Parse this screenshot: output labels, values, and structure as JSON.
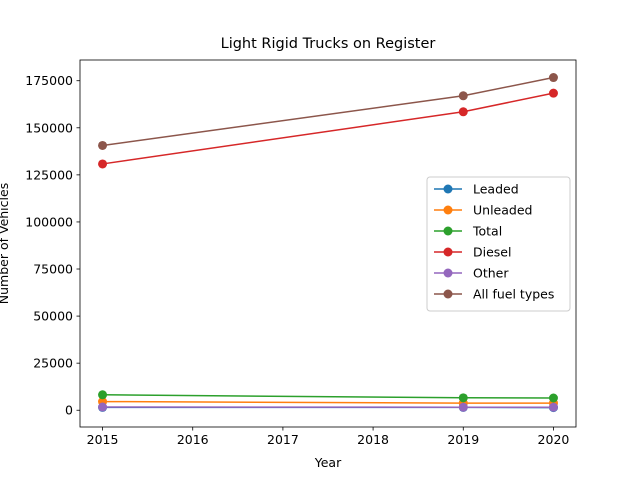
{
  "chart_data": {
    "type": "line",
    "title": "Light Rigid Trucks on Register",
    "xlabel": "Year",
    "ylabel": "Number of Vehicles",
    "x": [
      2015,
      2019,
      2020
    ],
    "xticks": [
      2015,
      2016,
      2017,
      2018,
      2019,
      2020
    ],
    "yticks": [
      0,
      25000,
      50000,
      75000,
      100000,
      125000,
      150000,
      175000
    ],
    "xlim": [
      2014.75,
      2020.25
    ],
    "ylim": [
      -8900,
      186000
    ],
    "grid": false,
    "legend_position": "center-right",
    "series": [
      {
        "name": "Leaded",
        "color": "#1f77b4",
        "values": [
          1500,
          1500,
          1400
        ]
      },
      {
        "name": "Unleaded",
        "color": "#ff7f0e",
        "values": [
          4600,
          3800,
          3800
        ]
      },
      {
        "name": "Total",
        "color": "#2ca02c",
        "values": [
          8200,
          6600,
          6500
        ]
      },
      {
        "name": "Diesel",
        "color": "#d62728",
        "values": [
          130800,
          158500,
          168400
        ]
      },
      {
        "name": "Other",
        "color": "#9467bd",
        "values": [
          1700,
          1600,
          1600
        ]
      },
      {
        "name": "All fuel types",
        "color": "#8c564b",
        "values": [
          140600,
          167000,
          176700
        ]
      }
    ]
  }
}
